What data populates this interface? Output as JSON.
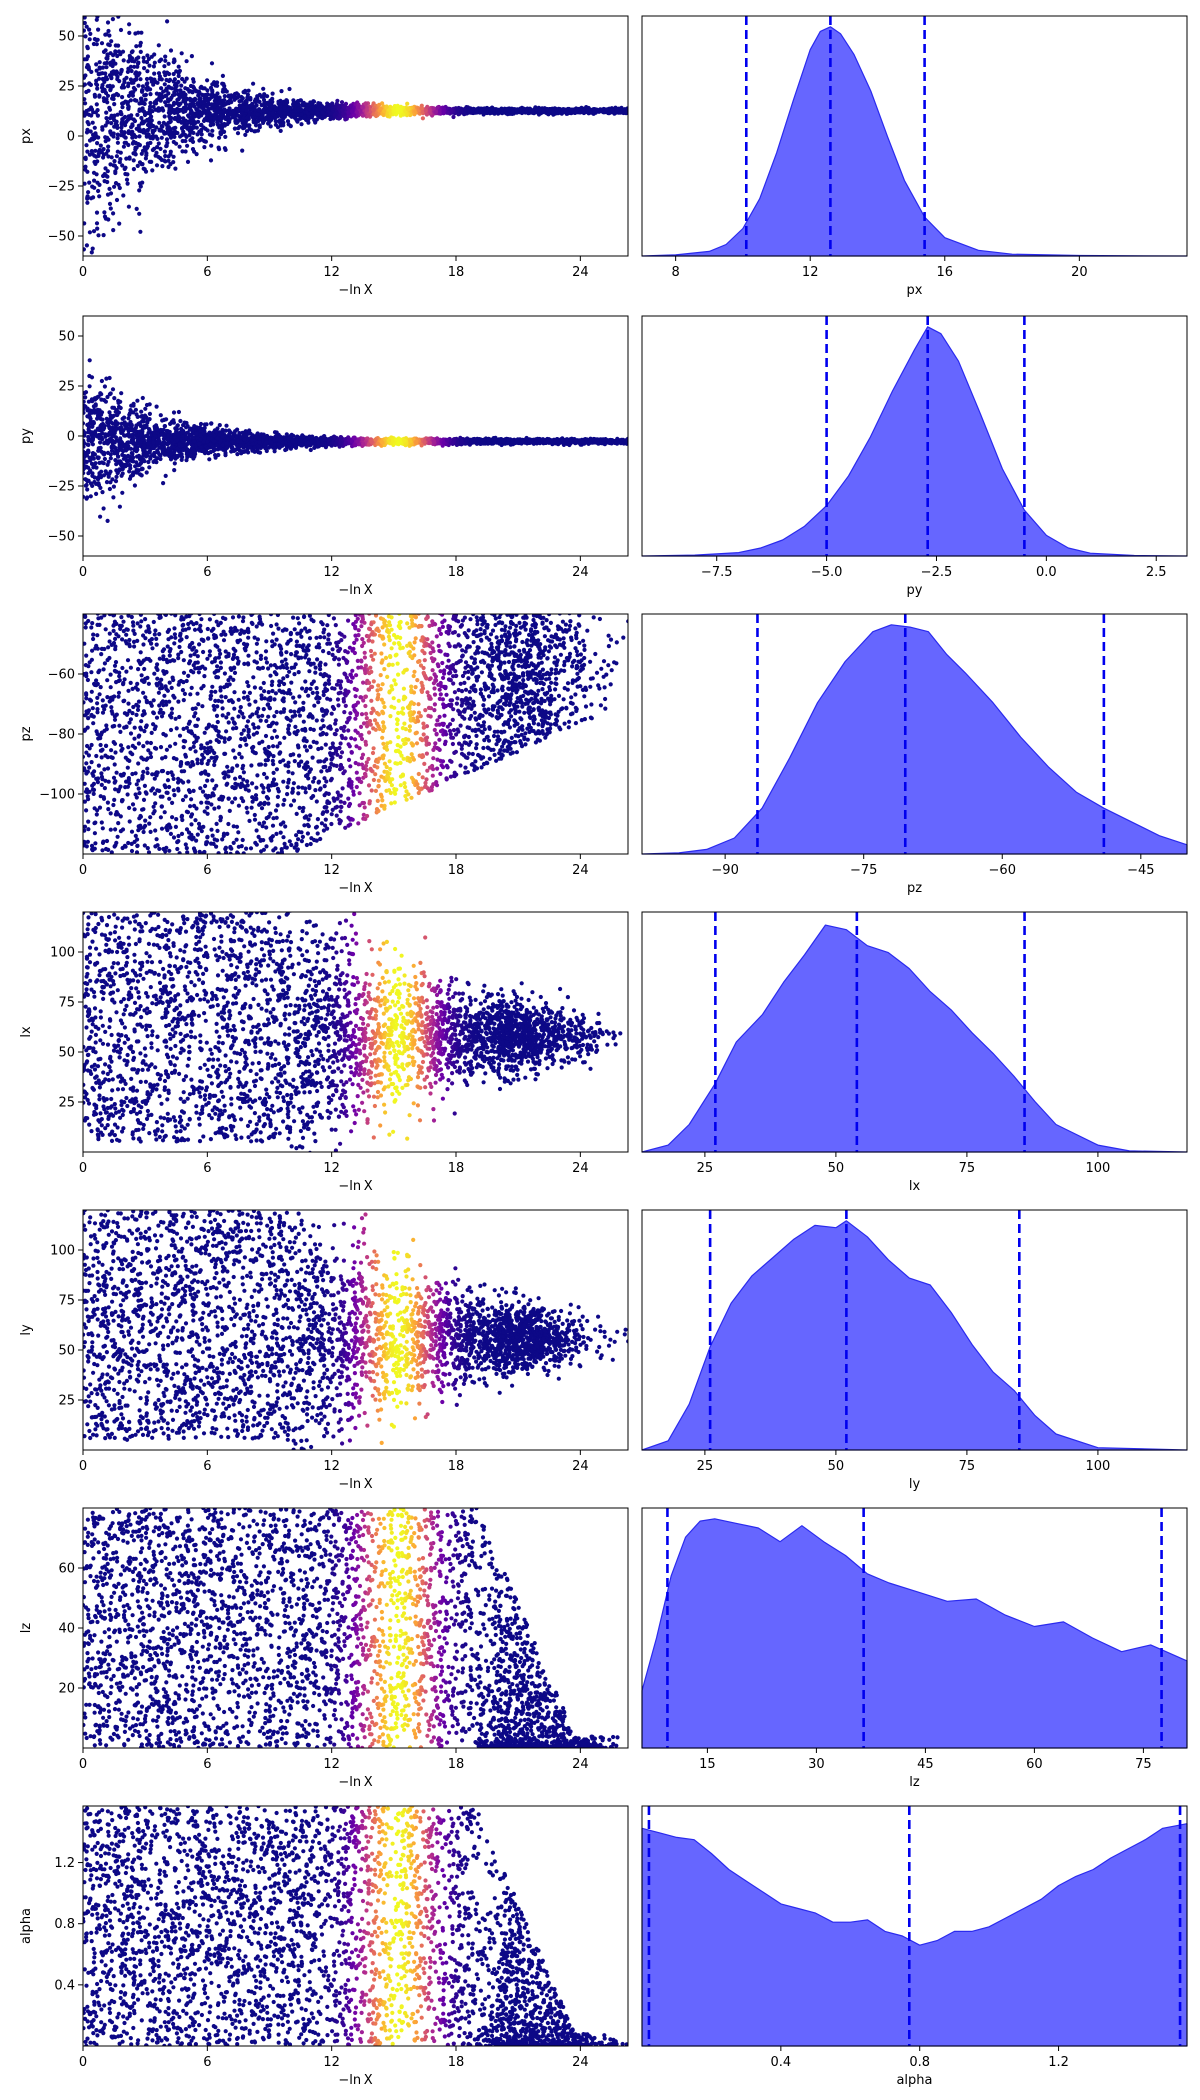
{
  "figure": {
    "xlabel_left": "−ln X",
    "colormap": [
      "#0d0887",
      "#6a00a8",
      "#b12a90",
      "#e16462",
      "#fca636",
      "#f0f921"
    ],
    "marker_color": "#0d0887",
    "hist_fill": "#6666ff",
    "hist_edge": "#2a2aee",
    "quantile_line_color": "#0000ee"
  },
  "chart_data": [
    {
      "type": "scatter",
      "param": "px",
      "ylabel": "px",
      "xlabel": "−ln X",
      "xlim": [
        0,
        26.3
      ],
      "ylim": [
        -60,
        60
      ],
      "xticks": [
        0,
        6,
        12,
        18,
        24
      ],
      "xtick_labels": [
        "0",
        "6",
        "12",
        "18",
        "24"
      ],
      "yticks": [
        -50,
        -25,
        0,
        25,
        50
      ],
      "ytick_labels": [
        "−50",
        "−25",
        "0",
        "25",
        "50"
      ],
      "center": 12.6,
      "spread": 0.41,
      "profile": "converge"
    },
    {
      "type": "area",
      "param": "px",
      "xlabel": "px",
      "xlim": [
        7,
        23.2
      ],
      "xticks": [
        8,
        12,
        16,
        20
      ],
      "xtick_labels": [
        "8",
        "12",
        "16",
        "20"
      ],
      "quantiles": [
        10.1,
        12.6,
        15.4
      ],
      "x": [
        7,
        8,
        9,
        9.5,
        10,
        10.5,
        11,
        11.5,
        12,
        12.3,
        12.6,
        12.9,
        13.3,
        13.8,
        14.3,
        14.8,
        15.4,
        16,
        17,
        18,
        20,
        23.2
      ],
      "y": [
        0,
        0.005,
        0.02,
        0.05,
        0.12,
        0.25,
        0.45,
        0.68,
        0.9,
        0.98,
        1,
        0.97,
        0.88,
        0.72,
        0.52,
        0.33,
        0.17,
        0.08,
        0.025,
        0.008,
        0.002,
        0
      ]
    },
    {
      "type": "scatter",
      "param": "py",
      "ylabel": "py",
      "xlabel": "−ln X",
      "xlim": [
        0,
        26.3
      ],
      "ylim": [
        -60,
        60
      ],
      "xticks": [
        0,
        6,
        12,
        18,
        24
      ],
      "xtick_labels": [
        "0",
        "6",
        "12",
        "18",
        "24"
      ],
      "yticks": [
        -50,
        -25,
        0,
        25,
        50
      ],
      "ytick_labels": [
        "−50",
        "−25",
        "0",
        "25",
        "50"
      ],
      "center": -2.7,
      "spread": 0.16,
      "profile": "converge"
    },
    {
      "type": "area",
      "param": "py",
      "xlabel": "py",
      "xlim": [
        -9.2,
        3.2
      ],
      "xticks": [
        -7.5,
        -5.0,
        -2.5,
        0.0,
        2.5
      ],
      "xtick_labels": [
        "−7.5",
        "−5.0",
        "−2.5",
        "0.0",
        "2.5"
      ],
      "quantiles": [
        -5.0,
        -2.7,
        -0.5
      ],
      "x": [
        -9.2,
        -8,
        -7,
        -6.5,
        -6,
        -5.5,
        -5,
        -4.5,
        -4,
        -3.5,
        -3,
        -2.7,
        -2.4,
        -2,
        -1.5,
        -1,
        -0.5,
        0,
        0.5,
        1,
        2,
        3.2
      ],
      "y": [
        0,
        0.004,
        0.015,
        0.035,
        0.07,
        0.13,
        0.22,
        0.35,
        0.52,
        0.72,
        0.9,
        1,
        0.97,
        0.85,
        0.62,
        0.38,
        0.2,
        0.09,
        0.035,
        0.012,
        0.002,
        0
      ]
    },
    {
      "type": "scatter",
      "param": "pz",
      "ylabel": "pz",
      "xlabel": "−ln X",
      "xlim": [
        0,
        26.3
      ],
      "ylim": [
        -120,
        -40
      ],
      "xticks": [
        0,
        6,
        12,
        18,
        24
      ],
      "xtick_labels": [
        "0",
        "6",
        "12",
        "18",
        "24"
      ],
      "yticks": [
        -100,
        -80,
        -60
      ],
      "ytick_labels": [
        "−100",
        "−80",
        "−60"
      ],
      "center": -70,
      "spread": 0.17,
      "profile": "widen_up"
    },
    {
      "type": "area",
      "param": "pz",
      "xlabel": "pz",
      "xlim": [
        -99,
        -40
      ],
      "xticks": [
        -90,
        -75,
        -60,
        -45
      ],
      "xtick_labels": [
        "−90",
        "−75",
        "−60",
        "−45"
      ],
      "quantiles": [
        -86.5,
        -70.5,
        -49
      ],
      "x": [
        -99,
        -95,
        -92,
        -89,
        -86,
        -83,
        -80,
        -77,
        -74,
        -72,
        -70,
        -68,
        -66,
        -64,
        -61,
        -58,
        -55,
        -52,
        -49,
        -46,
        -43,
        -40
      ],
      "y": [
        0,
        0.005,
        0.02,
        0.07,
        0.2,
        0.42,
        0.66,
        0.84,
        0.97,
        1,
        0.99,
        0.97,
        0.87,
        0.79,
        0.66,
        0.51,
        0.38,
        0.27,
        0.2,
        0.14,
        0.08,
        0.04
      ]
    },
    {
      "type": "scatter",
      "param": "lx",
      "ylabel": "lx",
      "xlabel": "−ln X",
      "xlim": [
        0,
        26.3
      ],
      "ylim": [
        0,
        120
      ],
      "xticks": [
        0,
        6,
        12,
        18,
        24
      ],
      "xtick_labels": [
        "0",
        "6",
        "12",
        "18",
        "24"
      ],
      "yticks": [
        25,
        50,
        75,
        100
      ],
      "ytick_labels": [
        "25",
        "50",
        "75",
        "100"
      ],
      "center": 58,
      "spread": 0.32,
      "profile": "cone"
    },
    {
      "type": "area",
      "param": "lx",
      "xlabel": "lx",
      "xlim": [
        13,
        117
      ],
      "xticks": [
        25,
        50,
        75,
        100
      ],
      "xtick_labels": [
        "25",
        "50",
        "75",
        "100"
      ],
      "quantiles": [
        27,
        54,
        86
      ],
      "x": [
        13,
        18,
        22,
        27,
        31,
        36,
        40,
        44,
        48,
        52,
        56,
        60,
        64,
        68,
        72,
        76,
        80,
        84,
        88,
        92,
        100,
        106,
        117
      ],
      "y": [
        0,
        0.03,
        0.12,
        0.3,
        0.48,
        0.6,
        0.74,
        0.86,
        0.99,
        0.97,
        0.9,
        0.87,
        0.8,
        0.7,
        0.62,
        0.52,
        0.43,
        0.33,
        0.22,
        0.12,
        0.03,
        0.005,
        0
      ]
    },
    {
      "type": "scatter",
      "param": "ly",
      "ylabel": "ly",
      "xlabel": "−ln X",
      "xlim": [
        0,
        26.3
      ],
      "ylim": [
        0,
        120
      ],
      "xticks": [
        0,
        6,
        12,
        18,
        24
      ],
      "xtick_labels": [
        "0",
        "6",
        "12",
        "18",
        "24"
      ],
      "yticks": [
        25,
        50,
        75,
        100
      ],
      "ytick_labels": [
        "25",
        "50",
        "75",
        "100"
      ],
      "center": 56,
      "spread": 0.32,
      "profile": "cone"
    },
    {
      "type": "area",
      "param": "ly",
      "xlabel": "ly",
      "xlim": [
        13,
        117
      ],
      "xticks": [
        25,
        50,
        75,
        100
      ],
      "xtick_labels": [
        "25",
        "50",
        "75",
        "100"
      ],
      "quantiles": [
        26,
        52,
        85
      ],
      "x": [
        13,
        18,
        22,
        26,
        30,
        34,
        38,
        42,
        46,
        50,
        52,
        56,
        60,
        64,
        68,
        72,
        76,
        80,
        84,
        88,
        92,
        100,
        117
      ],
      "y": [
        0,
        0.04,
        0.2,
        0.45,
        0.64,
        0.76,
        0.84,
        0.92,
        0.98,
        0.97,
        1,
        0.93,
        0.83,
        0.75,
        0.72,
        0.6,
        0.46,
        0.34,
        0.26,
        0.15,
        0.07,
        0.01,
        0
      ]
    },
    {
      "type": "scatter",
      "param": "lz",
      "ylabel": "lz",
      "xlabel": "−ln X",
      "xlim": [
        0,
        26.3
      ],
      "ylim": [
        0,
        80
      ],
      "xticks": [
        0,
        6,
        12,
        18,
        24
      ],
      "xtick_labels": [
        "0",
        "6",
        "12",
        "18",
        "24"
      ],
      "yticks": [
        20,
        40,
        60
      ],
      "ytick_labels": [
        "20",
        "40",
        "60"
      ],
      "center": 40,
      "spread": 0.5,
      "profile": "flat"
    },
    {
      "type": "area",
      "param": "lz",
      "xlabel": "lz",
      "xlim": [
        6,
        81
      ],
      "xticks": [
        15,
        30,
        45,
        60,
        75
      ],
      "xtick_labels": [
        "15",
        "30",
        "45",
        "60",
        "75"
      ],
      "quantiles": [
        9.5,
        36.5,
        77.5
      ],
      "x": [
        6,
        8,
        10,
        12,
        14,
        16,
        19,
        22,
        25,
        28,
        31,
        34,
        37,
        40,
        44,
        48,
        52,
        56,
        60,
        64,
        68,
        72,
        76,
        81
      ],
      "y": [
        0.25,
        0.48,
        0.75,
        0.92,
        0.99,
        1,
        0.98,
        0.96,
        0.9,
        0.97,
        0.9,
        0.84,
        0.76,
        0.72,
        0.68,
        0.64,
        0.65,
        0.58,
        0.53,
        0.55,
        0.48,
        0.42,
        0.45,
        0.38
      ]
    },
    {
      "type": "scatter",
      "param": "alpha",
      "ylabel": "alpha",
      "xlabel": "−ln X",
      "xlim": [
        0,
        26.3
      ],
      "ylim": [
        0,
        1.57
      ],
      "xticks": [
        0,
        6,
        12,
        18,
        24
      ],
      "xtick_labels": [
        "0",
        "6",
        "12",
        "18",
        "24"
      ],
      "yticks": [
        0.4,
        0.8,
        1.2
      ],
      "ytick_labels": [
        "0.4",
        "0.8",
        "1.2"
      ],
      "center": 0.78,
      "spread": 0.5,
      "profile": "flat"
    },
    {
      "type": "area",
      "param": "alpha",
      "xlabel": "alpha",
      "xlim": [
        0,
        1.57
      ],
      "xticks": [
        0.4,
        0.8,
        1.2
      ],
      "xtick_labels": [
        "0.4",
        "0.8",
        "1.2"
      ],
      "quantiles": [
        0.02,
        0.77,
        1.55
      ],
      "x": [
        0,
        0.05,
        0.1,
        0.15,
        0.2,
        0.25,
        0.3,
        0.35,
        0.4,
        0.45,
        0.5,
        0.55,
        0.6,
        0.65,
        0.7,
        0.75,
        0.8,
        0.85,
        0.9,
        0.95,
        1.0,
        1.05,
        1.1,
        1.15,
        1.2,
        1.25,
        1.3,
        1.35,
        1.4,
        1.45,
        1.5,
        1.57
      ],
      "y": [
        0.95,
        0.93,
        0.91,
        0.9,
        0.84,
        0.77,
        0.72,
        0.67,
        0.62,
        0.6,
        0.58,
        0.54,
        0.54,
        0.55,
        0.5,
        0.48,
        0.44,
        0.46,
        0.5,
        0.5,
        0.52,
        0.56,
        0.6,
        0.64,
        0.7,
        0.74,
        0.77,
        0.82,
        0.86,
        0.9,
        0.95,
        0.97
      ]
    }
  ]
}
